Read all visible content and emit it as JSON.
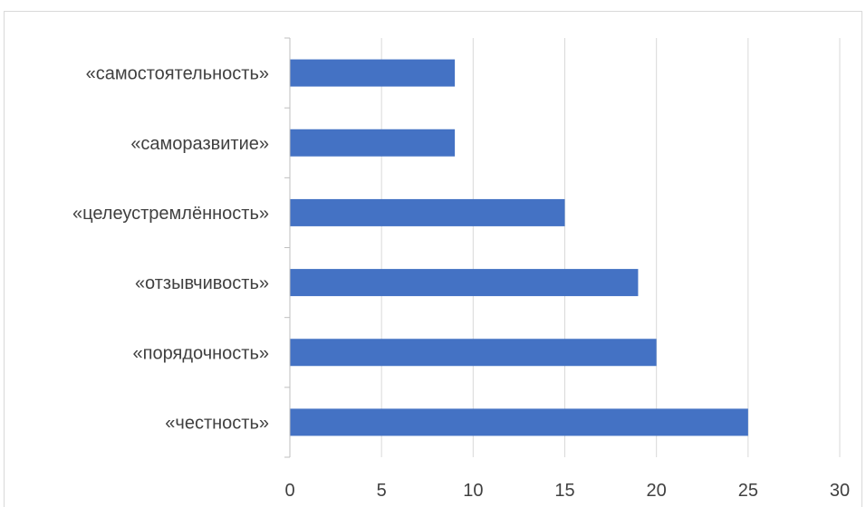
{
  "chart_data": {
    "type": "bar",
    "orientation": "horizontal",
    "categories": [
      "«самостоятельность»",
      "«саморазвитие»",
      "«целеустремлённость»",
      "«отзывчивость»",
      "«порядочность»",
      "«честность»"
    ],
    "values": [
      9,
      9,
      15,
      19,
      20,
      25
    ],
    "xlim": [
      0,
      30
    ],
    "xticks": [
      "0",
      "5",
      "10",
      "15",
      "20",
      "25",
      "30"
    ],
    "title": "",
    "xlabel": "",
    "ylabel": "",
    "grid": "vertical",
    "legend": "none",
    "bar_color": "#4472C4"
  }
}
